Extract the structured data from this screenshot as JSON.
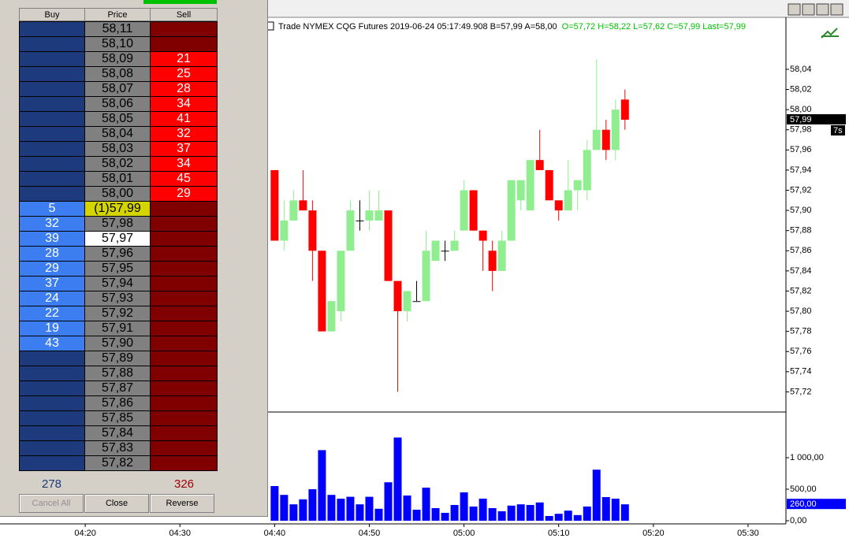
{
  "dom": {
    "columns": [
      "Buy",
      "Price",
      "Sell"
    ],
    "rows": [
      {
        "price": "58,11"
      },
      {
        "price": "58,10"
      },
      {
        "price": "58,09",
        "sell": 21
      },
      {
        "price": "58,08",
        "sell": 25
      },
      {
        "price": "58,07",
        "sell": 28
      },
      {
        "price": "58,06",
        "sell": 34
      },
      {
        "price": "58,05",
        "sell": 41
      },
      {
        "price": "58,04",
        "sell": 32
      },
      {
        "price": "58,03",
        "sell": 37
      },
      {
        "price": "58,02",
        "sell": 34
      },
      {
        "price": "58,01",
        "sell": 45
      },
      {
        "price": "58,00",
        "sell": 29
      },
      {
        "price": "(1)57,99",
        "buy": 5,
        "color": "#d4d400"
      },
      {
        "price": "57,98",
        "buy": 32
      },
      {
        "price": "57,97",
        "buy": 39,
        "color": "#ffffff"
      },
      {
        "price": "57,96",
        "buy": 28
      },
      {
        "price": "57,95",
        "buy": 29
      },
      {
        "price": "57,94",
        "buy": 37
      },
      {
        "price": "57,93",
        "buy": 24
      },
      {
        "price": "57,92",
        "buy": 22
      },
      {
        "price": "57,91",
        "buy": 19
      },
      {
        "price": "57,90",
        "buy": 43
      },
      {
        "price": "57,89"
      },
      {
        "price": "57,88"
      },
      {
        "price": "57,87"
      },
      {
        "price": "57,86"
      },
      {
        "price": "57,85"
      },
      {
        "price": "57,84"
      },
      {
        "price": "57,83"
      },
      {
        "price": "57,82"
      }
    ],
    "totals": {
      "buy": 278,
      "sell": 326
    },
    "buttons": [
      "Cancel All",
      "Close",
      "Reverse"
    ]
  },
  "chart_data": [
    {
      "type": "candlestick",
      "title": "Trade  NYMEX  CQG  Futures  2019-06-24  05:17:49.908  B=57,99  A=58,00",
      "subtitle": "O=57,72  H=58,22  L=57,62  C=57,99  Last=57,99",
      "up_color": "#90ee90",
      "down_color": "#ff0000",
      "doji_color": "#000000",
      "x": [
        "04:40",
        "04:41",
        "04:42",
        "04:43",
        "04:44",
        "04:45",
        "04:46",
        "04:47",
        "04:48",
        "04:49",
        "04:50",
        "04:51",
        "04:52",
        "04:53",
        "04:54",
        "04:55",
        "04:56",
        "04:57",
        "04:58",
        "04:59",
        "05:00",
        "05:01",
        "05:02",
        "05:03",
        "05:04",
        "05:05",
        "05:06",
        "05:07",
        "05:08",
        "05:09",
        "05:10",
        "05:11",
        "05:12",
        "05:13",
        "05:14",
        "05:15",
        "05:16",
        "05:17"
      ],
      "open": [
        57.94,
        57.87,
        57.89,
        57.91,
        57.9,
        57.86,
        57.78,
        57.8,
        57.86,
        57.89,
        57.89,
        57.89,
        57.9,
        57.83,
        57.8,
        57.81,
        57.81,
        57.85,
        57.86,
        57.86,
        57.88,
        57.92,
        57.88,
        57.86,
        57.84,
        57.87,
        57.91,
        57.9,
        57.95,
        57.94,
        57.91,
        57.9,
        57.92,
        57.92,
        57.96,
        57.98,
        57.96,
        58.01
      ],
      "high": [
        57.94,
        57.91,
        57.92,
        57.94,
        57.91,
        57.86,
        57.81,
        57.86,
        57.91,
        57.91,
        57.92,
        57.92,
        57.9,
        57.83,
        57.82,
        57.83,
        57.88,
        57.87,
        57.87,
        57.88,
        57.93,
        57.92,
        57.88,
        57.87,
        57.88,
        57.93,
        57.93,
        57.95,
        57.98,
        57.94,
        57.91,
        57.95,
        57.93,
        57.97,
        58.05,
        57.99,
        58.01,
        58.02
      ],
      "low": [
        57.87,
        57.86,
        57.89,
        57.9,
        57.83,
        57.78,
        57.78,
        57.79,
        57.86,
        57.88,
        57.88,
        57.89,
        57.83,
        57.72,
        57.79,
        57.81,
        57.81,
        57.85,
        57.85,
        57.86,
        57.88,
        57.88,
        57.84,
        57.82,
        57.84,
        57.87,
        57.9,
        57.9,
        57.94,
        57.91,
        57.89,
        57.9,
        57.9,
        57.91,
        57.96,
        57.95,
        57.95,
        57.98
      ],
      "close": [
        57.87,
        57.89,
        57.91,
        57.9,
        57.86,
        57.78,
        57.81,
        57.86,
        57.9,
        57.89,
        57.9,
        57.9,
        57.83,
        57.8,
        57.82,
        57.81,
        57.86,
        57.87,
        57.86,
        57.87,
        57.92,
        57.88,
        57.87,
        57.84,
        57.87,
        57.93,
        57.93,
        57.95,
        57.94,
        57.91,
        57.9,
        57.92,
        57.93,
        57.96,
        57.98,
        57.96,
        58.0,
        57.99
      ],
      "xlim": [
        "04:11",
        "05:34"
      ],
      "ylim": [
        57.7,
        58.09
      ],
      "yticks": [
        {
          "value": 57.72,
          "label": "57,72"
        },
        {
          "value": 57.74,
          "label": "57,74"
        },
        {
          "value": 57.76,
          "label": "57,76"
        },
        {
          "value": 57.78,
          "label": "57,78"
        },
        {
          "value": 57.8,
          "label": "57,80"
        },
        {
          "value": 57.82,
          "label": "57,82"
        },
        {
          "value": 57.84,
          "label": "57,84"
        },
        {
          "value": 57.86,
          "label": "57,86"
        },
        {
          "value": 57.88,
          "label": "57,88"
        },
        {
          "value": 57.9,
          "label": "57,90"
        },
        {
          "value": 57.92,
          "label": "57,92"
        },
        {
          "value": 57.94,
          "label": "57,94"
        },
        {
          "value": 57.96,
          "label": "57,96"
        },
        {
          "value": 57.98,
          "label": "57,98"
        },
        {
          "value": 58.0,
          "label": "58,00"
        },
        {
          "value": 58.02,
          "label": "58,02"
        },
        {
          "value": 58.04,
          "label": "58,04"
        }
      ],
      "last": {
        "value": 57.99,
        "label": "57,99"
      },
      "timer": "7s"
    },
    {
      "type": "bar",
      "color": "#0000ff",
      "x": [
        "04:40",
        "04:41",
        "04:42",
        "04:43",
        "04:44",
        "04:45",
        "04:46",
        "04:47",
        "04:48",
        "04:49",
        "04:50",
        "04:51",
        "04:52",
        "04:53",
        "04:54",
        "04:55",
        "04:56",
        "04:57",
        "04:58",
        "04:59",
        "05:00",
        "05:01",
        "05:02",
        "05:03",
        "05:04",
        "05:05",
        "05:06",
        "05:07",
        "05:08",
        "05:09",
        "05:10",
        "05:11",
        "05:12",
        "05:13",
        "05:14",
        "05:15",
        "05:16",
        "05:17"
      ],
      "values": [
        550,
        410,
        260,
        340,
        500,
        1120,
        410,
        350,
        380,
        260,
        380,
        190,
        610,
        1320,
        400,
        175,
        525,
        200,
        125,
        250,
        450,
        225,
        350,
        200,
        150,
        240,
        260,
        250,
        290,
        75,
        110,
        160,
        90,
        225,
        810,
        375,
        350,
        260
      ],
      "xlim": [
        "04:11",
        "05:34"
      ],
      "xticks": [
        "04:20",
        "04:30",
        "04:40",
        "04:50",
        "05:00",
        "05:10",
        "05:20",
        "05:30"
      ],
      "ylim": [
        -50,
        1700
      ],
      "yticks": [
        {
          "value": 0,
          "label": "0,00"
        },
        {
          "value": 500,
          "label": "500,00"
        },
        {
          "value": 1000,
          "label": "1 000,00"
        }
      ],
      "last": {
        "value": 260,
        "label": "260,00"
      }
    }
  ]
}
